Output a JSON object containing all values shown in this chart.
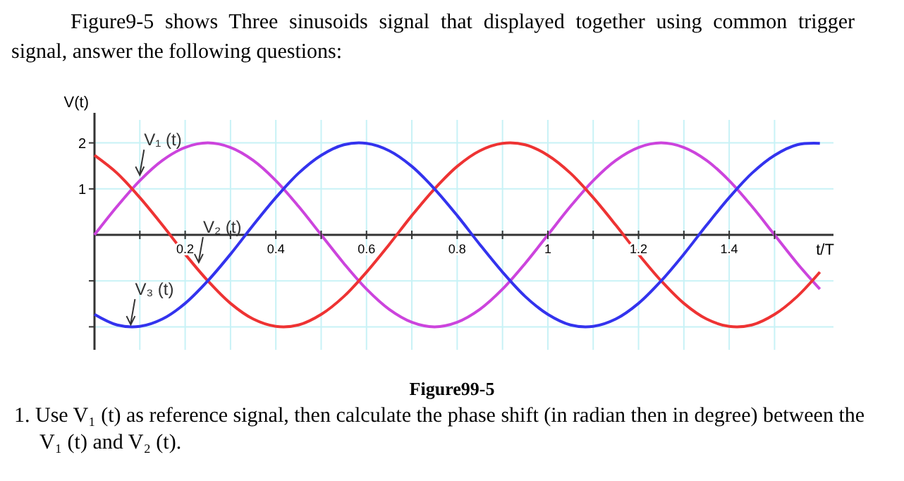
{
  "chart_data": {
    "type": "line",
    "title": "Figure9-5 shows Three sinusoids signal that displayed together using common trigger signal, answer the following questions:",
    "ylabel": "V(t)",
    "xlabel": "t/T",
    "x": [
      0,
      0.05,
      0.1,
      0.15,
      0.2,
      0.25,
      0.3,
      0.35,
      0.4,
      0.45,
      0.5,
      0.55,
      0.6,
      0.65,
      0.7,
      0.75,
      0.8,
      0.85,
      0.9,
      0.95,
      1,
      1.05,
      1.1,
      1.15,
      1.2,
      1.25,
      1.3,
      1.35,
      1.4,
      1.45,
      1.5,
      1.55,
      1.6
    ],
    "series": [
      {
        "color": "#cc44dd",
        "values": [
          0,
          0.62,
          1.18,
          1.62,
          1.9,
          2,
          1.9,
          1.62,
          1.18,
          0.62,
          0,
          -0.62,
          -1.18,
          -1.62,
          -1.9,
          -2,
          -1.9,
          -1.62,
          -1.18,
          -0.62,
          0,
          0.62,
          1.18,
          1.62,
          1.9,
          2,
          1.9,
          1.62,
          1.18,
          0.62,
          0,
          -0.62,
          -1.18
        ]
      },
      {
        "color": "#ee3333",
        "values": [
          1.73,
          1.34,
          0.81,
          0.21,
          -0.42,
          -1,
          -1.49,
          -1.83,
          -1.99,
          -1.96,
          -1.73,
          -1.34,
          -0.81,
          -0.21,
          0.42,
          1,
          1.49,
          1.83,
          1.99,
          1.96,
          1.73,
          1.34,
          0.81,
          0.21,
          -0.42,
          -1,
          -1.49,
          -1.83,
          -1.99,
          -1.96,
          -1.73,
          -1.34,
          -0.81
        ]
      },
      {
        "color": "#3333ee",
        "values": [
          -1.73,
          -1.96,
          -1.99,
          -1.83,
          -1.49,
          -1,
          -0.42,
          0.21,
          0.81,
          1.34,
          1.73,
          1.96,
          1.99,
          1.83,
          1.49,
          1,
          0.42,
          -0.21,
          -0.81,
          -1.34,
          -1.73,
          -1.96,
          -1.99,
          -1.83,
          -1.49,
          -1,
          -0.42,
          0.21,
          0.81,
          1.34,
          1.73,
          1.96,
          1.99
        ]
      }
    ],
    "xlim": [
      0,
      1.63
    ],
    "ylim": [
      -2.5,
      2.5
    ],
    "xticks": [
      {
        "value": 0.1,
        "label": null
      },
      0.2,
      {
        "value": 0.3,
        "label": null
      },
      0.4,
      {
        "value": 0.5,
        "label": null
      },
      0.6,
      {
        "value": 0.7,
        "label": null
      },
      0.8,
      {
        "value": 0.9,
        "label": null
      },
      1,
      {
        "value": 1.1,
        "label": null
      },
      1.2,
      {
        "value": 1.3,
        "label": null
      },
      1.4,
      {
        "value": 1.5,
        "label": null
      }
    ],
    "yticks": [
      {
        "value": -2,
        "label": null
      },
      {
        "value": -1,
        "label": null
      },
      1,
      2
    ],
    "grid": true,
    "annotations": [
      {
        "text": "V₁ (t)",
        "x": 0.1,
        "y": 1.3
      },
      {
        "text": "V₂ (t)",
        "x": 0.23,
        "y": -0.6
      },
      {
        "text": "V₃ (t)",
        "x": 0.08,
        "y": -1.95
      },
      "Figure99-5",
      "1. Use V₁ (t) as reference signal, then calculate the phase shift (in radian then in degree) between the V₁ (t) and V₂ (t)."
    ]
  }
}
